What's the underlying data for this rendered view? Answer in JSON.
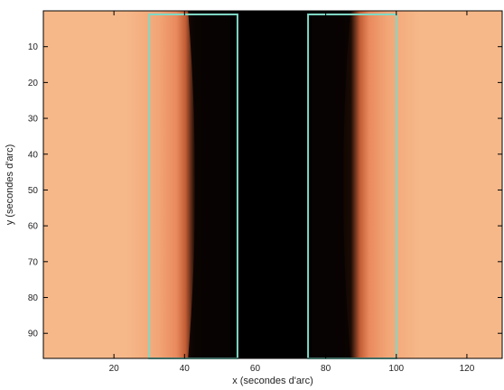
{
  "chart_data": {
    "type": "heatmap",
    "title": "",
    "xlabel": "x (secondes d'arc)",
    "ylabel": "y (secondes d'arc)",
    "xlim": [
      0,
      130
    ],
    "ylim": [
      0,
      97
    ],
    "y_reversed": true,
    "xticks": [
      20,
      40,
      60,
      80,
      100,
      120
    ],
    "yticks": [
      10,
      20,
      30,
      40,
      50,
      60,
      70,
      80,
      90
    ],
    "colormap": {
      "bright": "#f6b889",
      "mid": "#e98a5e",
      "dark": "#1a0a04",
      "black": "#000000"
    },
    "dark_band": {
      "x_center": 65,
      "core_x_range": [
        53,
        76
      ]
    },
    "overlays": [
      {
        "type": "rectangle",
        "x_range": [
          30,
          55
        ],
        "y_range": [
          1,
          97
        ],
        "color": "#7fd9c6"
      },
      {
        "type": "rectangle",
        "x_range": [
          75,
          100
        ],
        "y_range": [
          1,
          97
        ],
        "color": "#7fd9c6"
      }
    ]
  }
}
